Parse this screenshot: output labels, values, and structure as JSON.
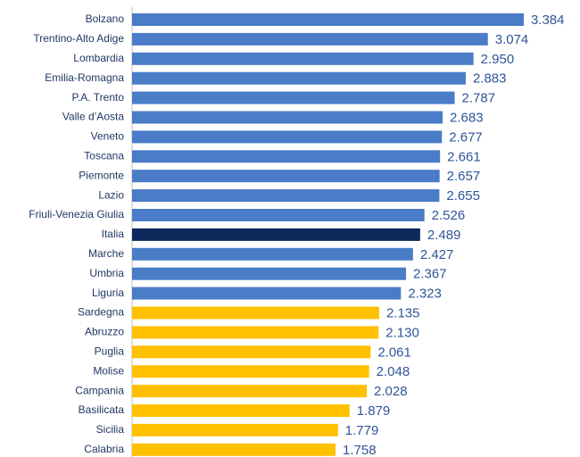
{
  "chart_data": {
    "type": "bar",
    "orientation": "horizontal",
    "categories": [
      "Bolzano",
      "Trentino-Alto Adige",
      "Lombardia",
      "Emilia-Romagna",
      "P.A. Trento",
      "Valle d’Aosta",
      "Veneto",
      "Toscana",
      "Piemonte",
      "Lazio",
      "Friuli-Venezia Giulia",
      "Italia",
      "Marche",
      "Umbria",
      "Liguria",
      "Sardegna",
      "Abruzzo",
      "Puglia",
      "Molise",
      "Campania",
      "Basilicata",
      "Sicilia",
      "Calabria"
    ],
    "values": [
      3.384,
      3.074,
      2.95,
      2.883,
      2.787,
      2.683,
      2.677,
      2.661,
      2.657,
      2.655,
      2.526,
      2.489,
      2.427,
      2.367,
      2.323,
      2.135,
      2.13,
      2.061,
      2.048,
      2.028,
      1.879,
      1.779,
      1.758
    ],
    "value_labels": [
      "3.384",
      "3.074",
      "2.950",
      "2.883",
      "2.787",
      "2.683",
      "2.677",
      "2.661",
      "2.657",
      "2.655",
      "2.526",
      "2.489",
      "2.427",
      "2.367",
      "2.323",
      "2.135",
      "2.130",
      "2.061",
      "2.048",
      "2.028",
      "1.879",
      "1.779",
      "1.758"
    ],
    "colors": [
      "#4a7cc7",
      "#4a7cc7",
      "#4a7cc7",
      "#4a7cc7",
      "#4a7cc7",
      "#4a7cc7",
      "#4a7cc7",
      "#4a7cc7",
      "#4a7cc7",
      "#4a7cc7",
      "#4a7cc7",
      "#0d2a5c",
      "#4a7cc7",
      "#4a7cc7",
      "#4a7cc7",
      "#ffc000",
      "#ffc000",
      "#ffc000",
      "#ffc000",
      "#ffc000",
      "#ffc000",
      "#ffc000",
      "#ffc000"
    ],
    "xlim": [
      0,
      3.5
    ]
  }
}
